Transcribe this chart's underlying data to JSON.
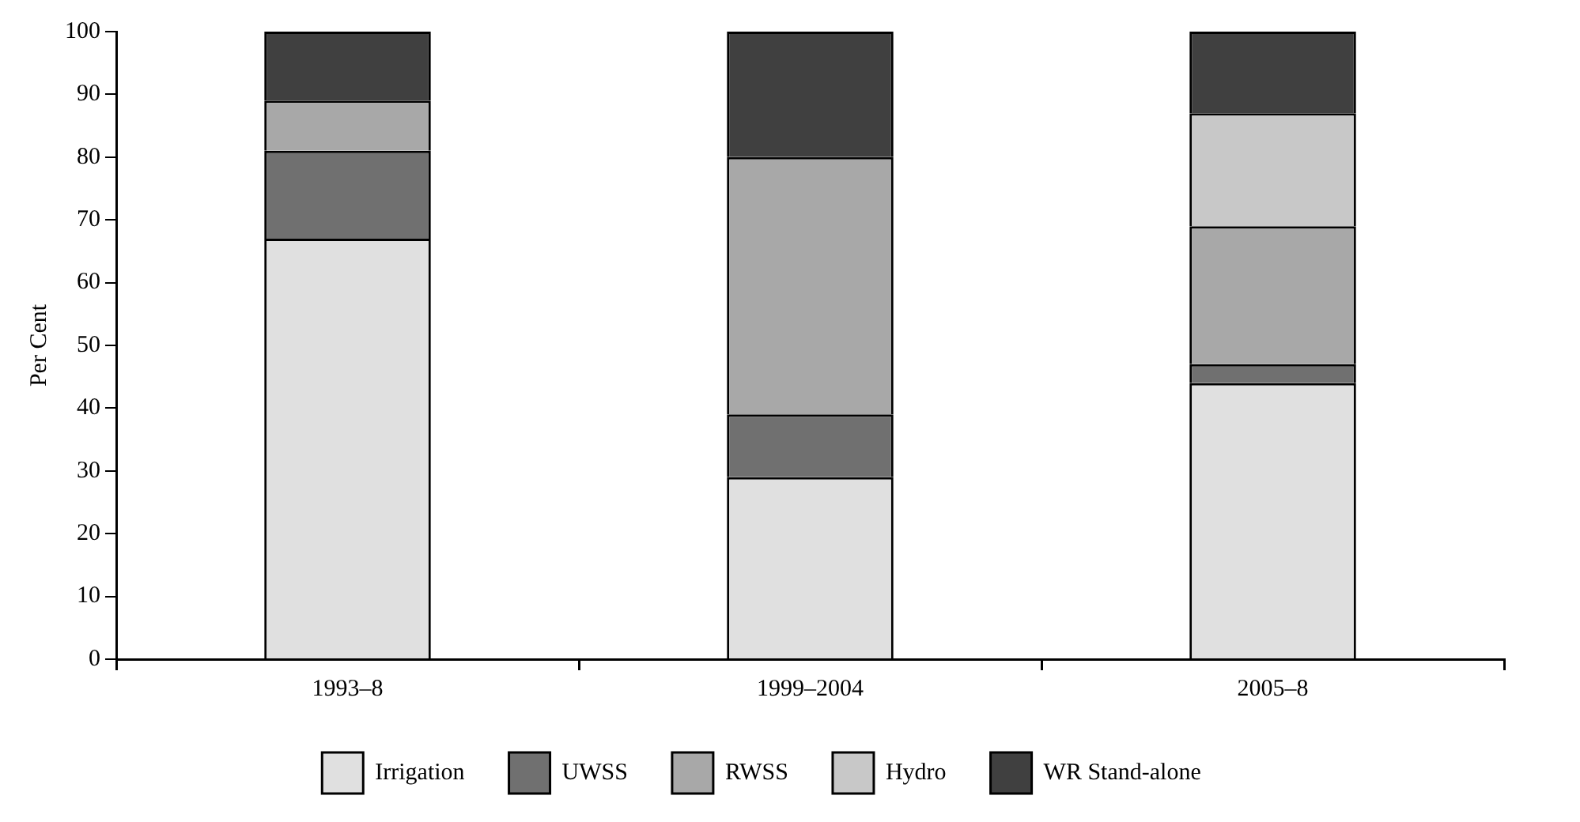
{
  "chart_data": {
    "type": "bar",
    "stacked": true,
    "ylabel": "Per Cent",
    "categories": [
      "1993–8",
      "1999–2004",
      "2005–8"
    ],
    "series": [
      {
        "name": "Irrigation",
        "color": "#e0e0e0",
        "values": [
          67,
          29,
          44
        ]
      },
      {
        "name": "UWSS",
        "color": "#707070",
        "values": [
          14,
          10,
          3
        ]
      },
      {
        "name": "RWSS",
        "color": "#a8a8a8",
        "values": [
          8,
          41,
          22
        ]
      },
      {
        "name": "Hydro",
        "color": "#c8c8c8",
        "values": [
          0,
          0,
          18
        ]
      },
      {
        "name": "WR Stand-alone",
        "color": "#404040",
        "values": [
          11,
          20,
          13
        ]
      }
    ],
    "ylim": [
      0,
      100
    ],
    "yticks": [
      0,
      10,
      20,
      30,
      40,
      50,
      60,
      70,
      80,
      90,
      100
    ],
    "grid": false,
    "legend": "bottom"
  }
}
